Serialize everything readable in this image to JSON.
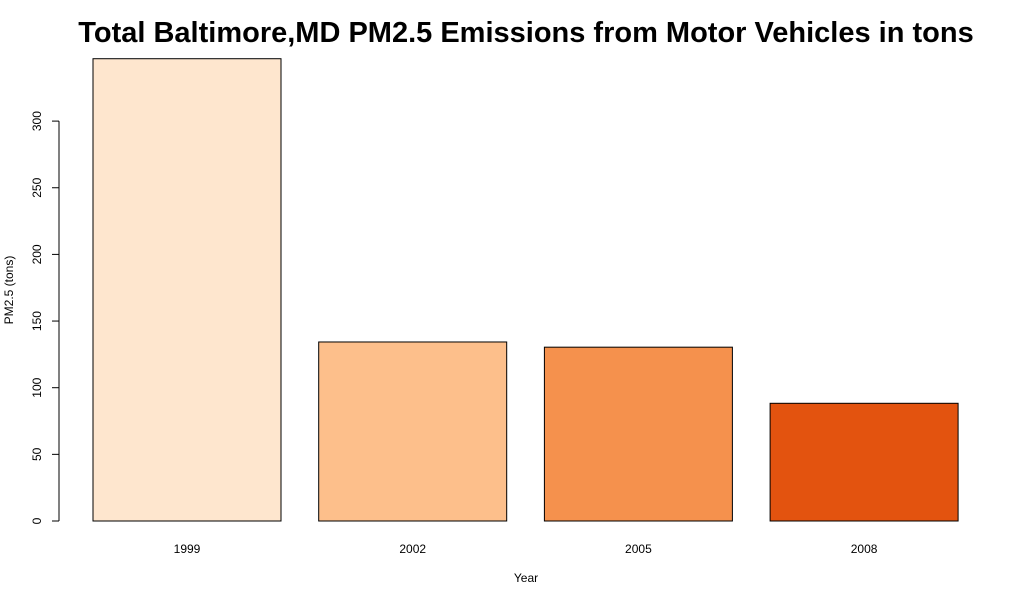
{
  "chart_data": {
    "type": "bar",
    "title": "Total Baltimore,MD PM2.5 Emissions from Motor Vehicles in tons",
    "xlabel": "Year",
    "ylabel": "PM2.5 (tons)",
    "categories": [
      "1999",
      "2002",
      "2005",
      "2008"
    ],
    "values": [
      346.8,
      134.3,
      130.4,
      88.3
    ],
    "colors": [
      "#FEE6CE",
      "#FDBF8B",
      "#F5914D",
      "#E3530F"
    ],
    "yticks": [
      0,
      50,
      100,
      150,
      200,
      250,
      300
    ],
    "ylim": [
      0,
      346.8
    ],
    "grid": false,
    "legend": "none"
  }
}
